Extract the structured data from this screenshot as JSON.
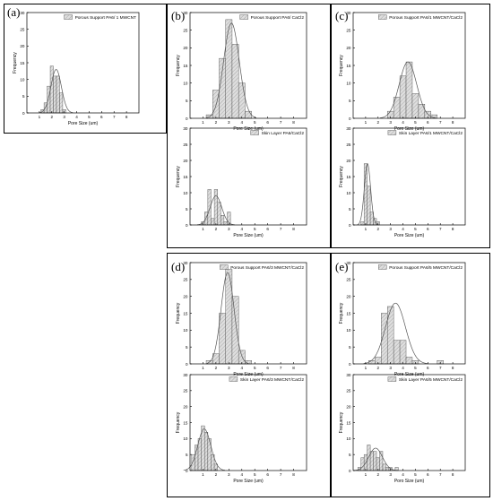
{
  "colors": {
    "bar_fill": "#dedede",
    "bar_stroke": "#444444",
    "curve": "#555555",
    "axis": "#000000"
  },
  "panel_labels": [
    "(a)",
    "(b)",
    "(c)",
    "(d)",
    "(e)"
  ],
  "chart_data": [
    {
      "panel": "(a)",
      "type": "bar",
      "legend": "Porous Support PA6/ 1 MWCNT",
      "xlabel": "Pore Size (um)",
      "ylabel": "Frequency",
      "xlim": [
        0,
        9
      ],
      "ylim": [
        0,
        30
      ],
      "xticks": [
        1,
        2,
        3,
        4,
        5,
        6,
        7,
        8
      ],
      "yticks": [
        0,
        5,
        10,
        15,
        20,
        25,
        30
      ],
      "bin_width": 0.25,
      "bins": [
        [
          1.25,
          1
        ],
        [
          1.5,
          3
        ],
        [
          1.75,
          8
        ],
        [
          2.0,
          14
        ],
        [
          2.25,
          11
        ],
        [
          2.5,
          11
        ],
        [
          2.75,
          6
        ],
        [
          3.0,
          1
        ]
      ],
      "fit": {
        "mean": 2.35,
        "sd": 0.42,
        "peak": 13
      }
    },
    {
      "panel": "(b)",
      "type": "bar",
      "legend": "Porous Support PA6/ CaCl2",
      "xlabel": "Pore Size (um)",
      "ylabel": "Frequency",
      "xlim": [
        0,
        9
      ],
      "ylim": [
        0,
        30
      ],
      "xticks": [
        1,
        2,
        3,
        4,
        5,
        6,
        7,
        8
      ],
      "yticks": [
        0,
        5,
        10,
        15,
        20,
        25,
        30
      ],
      "bin_width": 0.5,
      "bins": [
        [
          1.5,
          1
        ],
        [
          2.0,
          8
        ],
        [
          2.5,
          17
        ],
        [
          3.0,
          28
        ],
        [
          3.5,
          21
        ],
        [
          4.0,
          10
        ],
        [
          4.5,
          2
        ]
      ],
      "fit": {
        "mean": 3.2,
        "sd": 0.6,
        "peak": 27
      }
    },
    {
      "panel": "(b)",
      "type": "bar",
      "legend": "Skin Layer PA6/CaCl2",
      "xlabel": "Pore Size (um)",
      "ylabel": "Frequency",
      "xlim": [
        0,
        9
      ],
      "ylim": [
        0,
        30
      ],
      "xticks": [
        1,
        2,
        3,
        4,
        5,
        6,
        7,
        8
      ],
      "yticks": [
        0,
        5,
        10,
        15,
        20,
        25,
        30
      ],
      "bin_width": 0.25,
      "bins": [
        [
          1.0,
          1
        ],
        [
          1.25,
          4
        ],
        [
          1.5,
          11
        ],
        [
          1.75,
          2
        ],
        [
          2.0,
          11
        ],
        [
          2.25,
          7
        ],
        [
          2.5,
          3
        ],
        [
          2.75,
          1
        ],
        [
          3.0,
          4
        ]
      ],
      "fit": {
        "mean": 2.0,
        "sd": 0.45,
        "peak": 9
      }
    },
    {
      "panel": "(c)",
      "type": "bar",
      "legend": "Porous Support PA6/1 MWCNT/CaCl2",
      "xlabel": "Pore Size (um)",
      "ylabel": "Frequency",
      "xlim": [
        0,
        9
      ],
      "ylim": [
        0,
        30
      ],
      "xticks": [
        1,
        2,
        3,
        4,
        5,
        6,
        7,
        8
      ],
      "yticks": [
        0,
        5,
        10,
        15,
        20,
        25,
        30
      ],
      "bin_width": 0.5,
      "bins": [
        [
          3.0,
          2
        ],
        [
          3.5,
          6
        ],
        [
          4.0,
          12
        ],
        [
          4.5,
          16
        ],
        [
          5.0,
          7
        ],
        [
          5.5,
          4
        ],
        [
          6.0,
          2
        ],
        [
          6.5,
          1
        ]
      ],
      "fit": {
        "mean": 4.4,
        "sd": 0.7,
        "peak": 16
      }
    },
    {
      "panel": "(c)",
      "type": "bar",
      "legend": "Skin Layer PA6/1 MWCNT/CaCl2",
      "xlabel": "Pore Size (um)",
      "ylabel": "Frequency",
      "xlim": [
        0,
        9
      ],
      "ylim": [
        0,
        30
      ],
      "xticks": [
        1,
        2,
        3,
        4,
        5,
        6,
        7,
        8
      ],
      "yticks": [
        0,
        5,
        10,
        15,
        20,
        25,
        30
      ],
      "bin_width": 0.25,
      "bins": [
        [
          0.75,
          1
        ],
        [
          1.0,
          19
        ],
        [
          1.25,
          12
        ],
        [
          1.5,
          4
        ],
        [
          1.75,
          2
        ],
        [
          2.0,
          1
        ]
      ],
      "fit": {
        "mean": 1.15,
        "sd": 0.25,
        "peak": 19
      }
    },
    {
      "panel": "(d)",
      "type": "bar",
      "legend": "Porous Support PA6/3 MWCNT/CaCl2",
      "xlabel": "Pore Size (um)",
      "ylabel": "Frequency",
      "xlim": [
        0,
        9
      ],
      "ylim": [
        0,
        30
      ],
      "xticks": [
        1,
        2,
        3,
        4,
        5,
        6,
        7,
        8
      ],
      "yticks": [
        0,
        5,
        10,
        15,
        20,
        25,
        30
      ],
      "bin_width": 0.5,
      "bins": [
        [
          1.5,
          1
        ],
        [
          2.0,
          3
        ],
        [
          2.5,
          15
        ],
        [
          3.0,
          28
        ],
        [
          3.5,
          20
        ],
        [
          4.0,
          4
        ],
        [
          4.5,
          1
        ]
      ],
      "fit": {
        "mean": 2.9,
        "sd": 0.5,
        "peak": 27
      }
    },
    {
      "panel": "(d)",
      "type": "bar",
      "legend": "Skin Layer PA6/3 MWCNT/CaCl2",
      "xlabel": "Pore Size (um)",
      "ylabel": "Frequency",
      "xlim": [
        0,
        9
      ],
      "ylim": [
        0,
        30
      ],
      "xticks": [
        1,
        2,
        3,
        4,
        5,
        6,
        7,
        8
      ],
      "yticks": [
        0,
        5,
        10,
        15,
        20,
        25,
        30
      ],
      "bin_width": 0.25,
      "bins": [
        [
          0.25,
          5
        ],
        [
          0.5,
          8
        ],
        [
          0.75,
          10
        ],
        [
          1.0,
          14
        ],
        [
          1.25,
          12
        ],
        [
          1.5,
          10
        ],
        [
          1.75,
          5
        ],
        [
          2.0,
          2
        ]
      ],
      "fit": {
        "mean": 1.1,
        "sd": 0.5,
        "peak": 13
      }
    },
    {
      "panel": "(e)",
      "type": "bar",
      "legend": "Porous Support PA6/5 MWCNT/CaCl2",
      "xlabel": "Pore Size (um)",
      "ylabel": "Frequency",
      "xlim": [
        0,
        9
      ],
      "ylim": [
        0,
        30
      ],
      "xticks": [
        1,
        2,
        3,
        4,
        5,
        6,
        7,
        8
      ],
      "yticks": [
        0,
        5,
        10,
        15,
        20,
        25,
        30
      ],
      "bin_width": 0.5,
      "bins": [
        [
          1.5,
          1
        ],
        [
          2.0,
          2
        ],
        [
          2.5,
          15
        ],
        [
          3.0,
          17
        ],
        [
          3.5,
          7
        ],
        [
          4.0,
          7
        ],
        [
          4.5,
          2
        ],
        [
          5.0,
          1
        ],
        [
          7.0,
          1
        ]
      ],
      "fit": {
        "mean": 3.4,
        "sd": 0.8,
        "peak": 18
      }
    },
    {
      "panel": "(e)",
      "type": "bar",
      "legend": "Skin Layer PA6/5 MWCNT/CaCl2",
      "xlabel": "Poro Size (um)",
      "ylabel": "Frequency",
      "xlim": [
        0,
        9
      ],
      "ylim": [
        0,
        30
      ],
      "xticks": [
        1,
        2,
        3,
        4,
        5,
        6,
        7,
        8
      ],
      "yticks": [
        0,
        5,
        10,
        15,
        20,
        25,
        30
      ],
      "bin_width": 0.25,
      "bins": [
        [
          0.5,
          1
        ],
        [
          0.75,
          4
        ],
        [
          1.0,
          5
        ],
        [
          1.25,
          8
        ],
        [
          1.5,
          6
        ],
        [
          1.75,
          6
        ],
        [
          2.0,
          4
        ],
        [
          2.25,
          6
        ],
        [
          2.5,
          2
        ],
        [
          2.75,
          1
        ],
        [
          3.0,
          1
        ],
        [
          3.5,
          1
        ]
      ],
      "fit": {
        "mean": 1.8,
        "sd": 0.55,
        "peak": 7
      }
    }
  ]
}
